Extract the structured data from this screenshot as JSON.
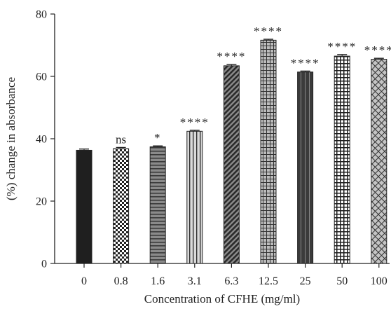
{
  "chart_data": {
    "type": "bar",
    "categories": [
      "0",
      "0.8",
      "1.6",
      "3.1",
      "6.3",
      "12.5",
      "25",
      "50",
      "100"
    ],
    "values": [
      36.3,
      36.8,
      37.4,
      42.4,
      63.4,
      71.6,
      61.4,
      66.5,
      65.5
    ],
    "errors": [
      0.4,
      0.4,
      0.3,
      0.3,
      0.4,
      0.3,
      0.3,
      0.5,
      0.3
    ],
    "significance": [
      "",
      "ns",
      "*",
      "****",
      "****",
      "****",
      "****",
      "****",
      "****"
    ],
    "patterns": [
      "solid-dark",
      "checker",
      "horizontal-lines",
      "vertical-lines",
      "diagonal-dark",
      "grid",
      "vertical-dark",
      "large-checker",
      "crosshatch"
    ],
    "xlabel": "Concentration of CFHE (mg/ml)",
    "ylabel": "(%) change in absorbance",
    "ylim": [
      0,
      80
    ],
    "yticks": [
      0,
      20,
      40,
      60,
      80
    ],
    "grid": false,
    "colors": {
      "ink": "#222222",
      "light": "#d6d6d6",
      "mid": "#8a8a8a",
      "white": "#ffffff"
    }
  }
}
